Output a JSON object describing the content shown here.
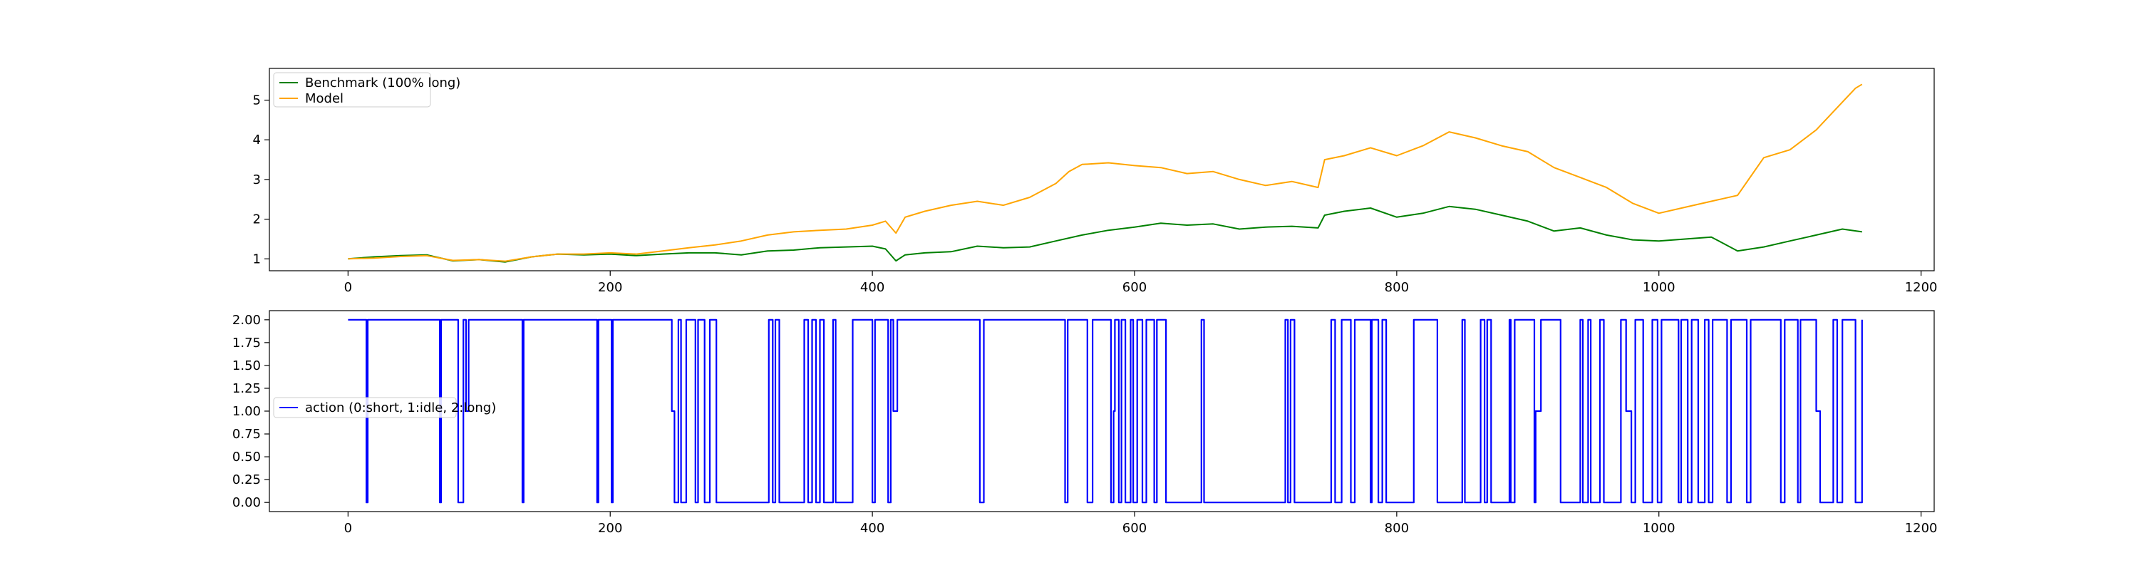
{
  "chart_data": [
    {
      "type": "line",
      "title": "",
      "xlabel": "",
      "ylabel": "",
      "xlim": [
        -60,
        1210
      ],
      "ylim": [
        0.7,
        5.8
      ],
      "xticks": [
        0,
        200,
        400,
        600,
        800,
        1000,
        1200
      ],
      "yticks": [
        1,
        2,
        3,
        4,
        5
      ],
      "legend_position": "top-left",
      "grid": false,
      "series": [
        {
          "name": "Benchmark (100% long)",
          "color": "#008000",
          "x": [
            0,
            20,
            40,
            60,
            80,
            100,
            120,
            140,
            160,
            180,
            200,
            220,
            240,
            260,
            280,
            300,
            320,
            340,
            360,
            380,
            400,
            410,
            418,
            425,
            440,
            460,
            480,
            500,
            520,
            540,
            560,
            580,
            600,
            620,
            640,
            660,
            680,
            700,
            720,
            740,
            745,
            760,
            780,
            800,
            820,
            840,
            860,
            880,
            900,
            920,
            940,
            960,
            980,
            1000,
            1020,
            1040,
            1060,
            1080,
            1100,
            1120,
            1140,
            1155
          ],
          "y": [
            1.0,
            1.05,
            1.08,
            1.1,
            0.95,
            0.98,
            0.92,
            1.05,
            1.12,
            1.1,
            1.12,
            1.08,
            1.12,
            1.15,
            1.15,
            1.1,
            1.2,
            1.22,
            1.28,
            1.3,
            1.32,
            1.25,
            0.95,
            1.1,
            1.15,
            1.18,
            1.32,
            1.28,
            1.3,
            1.45,
            1.6,
            1.72,
            1.8,
            1.9,
            1.85,
            1.88,
            1.75,
            1.8,
            1.82,
            1.78,
            2.1,
            2.2,
            2.28,
            2.05,
            2.15,
            2.32,
            2.25,
            2.1,
            1.95,
            1.7,
            1.78,
            1.6,
            1.48,
            1.45,
            1.5,
            1.55,
            1.2,
            1.3,
            1.45,
            1.6,
            1.75,
            1.68
          ]
        },
        {
          "name": "Model",
          "color": "#ffa500",
          "x": [
            0,
            20,
            40,
            60,
            80,
            100,
            120,
            140,
            160,
            180,
            200,
            220,
            240,
            260,
            280,
            300,
            320,
            340,
            360,
            380,
            400,
            410,
            418,
            425,
            440,
            460,
            480,
            500,
            520,
            540,
            550,
            560,
            580,
            600,
            620,
            640,
            660,
            680,
            700,
            720,
            740,
            745,
            760,
            780,
            800,
            820,
            840,
            860,
            880,
            900,
            920,
            940,
            960,
            980,
            1000,
            1020,
            1040,
            1060,
            1080,
            1100,
            1120,
            1140,
            1150,
            1155
          ],
          "y": [
            1.0,
            1.02,
            1.06,
            1.08,
            0.96,
            0.98,
            0.94,
            1.05,
            1.12,
            1.12,
            1.15,
            1.12,
            1.2,
            1.28,
            1.35,
            1.45,
            1.6,
            1.68,
            1.72,
            1.75,
            1.85,
            1.95,
            1.65,
            2.05,
            2.2,
            2.35,
            2.45,
            2.35,
            2.55,
            2.9,
            3.2,
            3.38,
            3.42,
            3.35,
            3.3,
            3.15,
            3.2,
            3.0,
            2.85,
            2.95,
            2.8,
            3.5,
            3.6,
            3.8,
            3.6,
            3.85,
            4.2,
            4.05,
            3.85,
            3.7,
            3.3,
            3.05,
            2.8,
            2.4,
            2.15,
            2.3,
            2.45,
            2.6,
            3.55,
            3.75,
            4.25,
            4.95,
            5.3,
            5.4
          ]
        }
      ]
    },
    {
      "type": "line",
      "title": "",
      "xlabel": "",
      "ylabel": "",
      "xlim": [
        -60,
        1210
      ],
      "ylim": [
        -0.1,
        2.1
      ],
      "xticks": [
        0,
        200,
        400,
        600,
        800,
        1000,
        1200
      ],
      "yticks": [
        0.0,
        0.25,
        0.5,
        0.75,
        1.0,
        1.25,
        1.5,
        1.75,
        2.0
      ],
      "ytick_labels": [
        "0.00",
        "0.25",
        "0.50",
        "0.75",
        "1.00",
        "1.25",
        "1.50",
        "1.75",
        "2.00"
      ],
      "legend_position": "center-left",
      "grid": false,
      "series": [
        {
          "name": "action (0:short, 1:idle, 2:long)",
          "color": "#0000ff",
          "step": true,
          "x": [
            0,
            14,
            15,
            70,
            71,
            84,
            88,
            90,
            92,
            133,
            134,
            190,
            191,
            201,
            202,
            247,
            249,
            252,
            254,
            258,
            265,
            267,
            272,
            276,
            281,
            321,
            324,
            326,
            329,
            348,
            351,
            354,
            357,
            360,
            363,
            370,
            372,
            385,
            400,
            402,
            412,
            414,
            416,
            419,
            482,
            485,
            547,
            549,
            564,
            568,
            582,
            584,
            585,
            588,
            590,
            593,
            597,
            599,
            602,
            606,
            609,
            615,
            617,
            624,
            651,
            653,
            715,
            717,
            719,
            722,
            750,
            753,
            758,
            765,
            768,
            780,
            781,
            786,
            789,
            792,
            813,
            831,
            850,
            852,
            864,
            867,
            869,
            872,
            886,
            887,
            890,
            905,
            906,
            910,
            925,
            940,
            942,
            946,
            948,
            955,
            958,
            971,
            975,
            979,
            982,
            988,
            995,
            999,
            1002,
            1015,
            1017,
            1022,
            1025,
            1030,
            1035,
            1038,
            1041,
            1052,
            1055,
            1067,
            1070,
            1093,
            1096,
            1106,
            1108,
            1120,
            1123,
            1133,
            1136,
            1140,
            1150,
            1155
          ],
          "y": [
            2,
            0,
            2,
            0,
            2,
            0,
            2,
            1,
            2,
            0,
            2,
            0,
            2,
            0,
            2,
            1,
            0,
            2,
            0,
            2,
            0,
            2,
            0,
            2,
            0,
            2,
            0,
            2,
            0,
            2,
            0,
            2,
            0,
            2,
            0,
            2,
            0,
            2,
            0,
            2,
            0,
            2,
            1,
            2,
            0,
            2,
            0,
            2,
            0,
            2,
            0,
            1,
            2,
            0,
            2,
            0,
            2,
            0,
            2,
            0,
            2,
            0,
            2,
            0,
            2,
            0,
            2,
            0,
            2,
            0,
            2,
            0,
            2,
            0,
            2,
            0,
            2,
            0,
            2,
            0,
            2,
            0,
            2,
            0,
            2,
            0,
            2,
            0,
            2,
            0,
            2,
            0,
            1,
            2,
            0,
            2,
            0,
            2,
            0,
            2,
            0,
            2,
            1,
            0,
            2,
            0,
            2,
            0,
            2,
            0,
            2,
            0,
            2,
            0,
            2,
            0,
            2,
            0,
            2,
            0,
            2,
            0,
            2,
            0,
            2,
            1,
            0,
            2,
            0,
            2,
            0,
            2
          ]
        }
      ]
    }
  ]
}
